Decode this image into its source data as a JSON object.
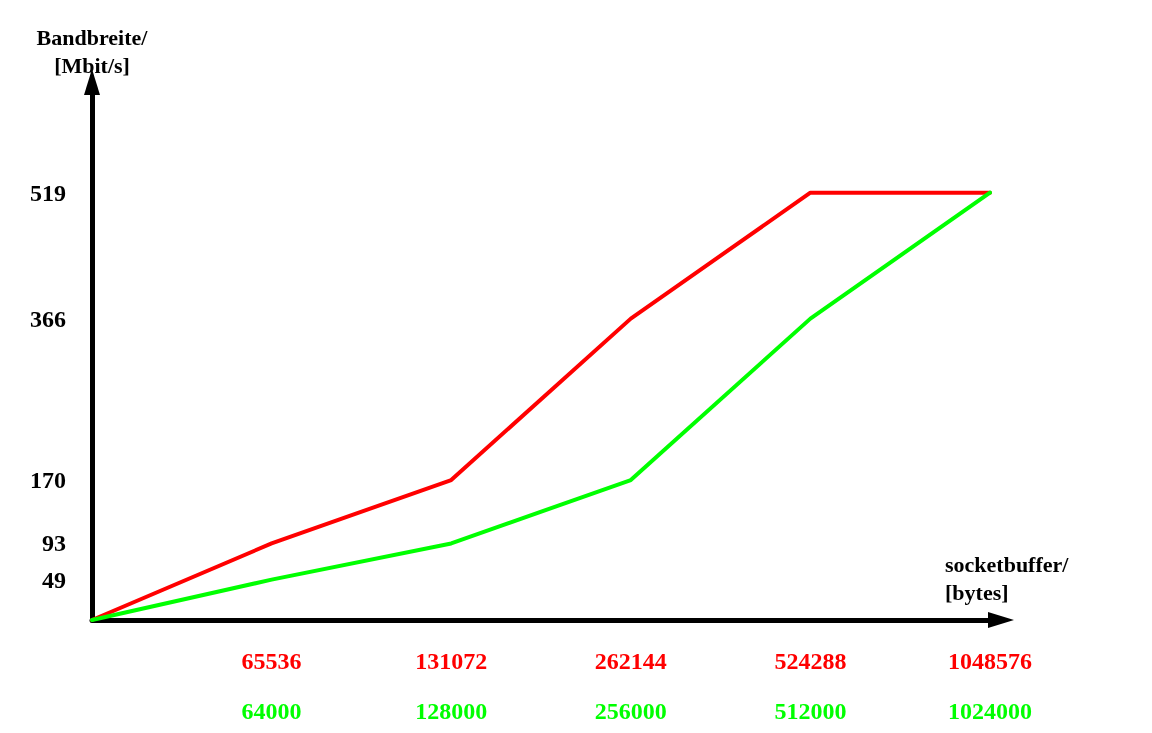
{
  "chart_data": {
    "type": "line",
    "ylabel": "Bandbreite/\n[Mbit/s]",
    "xlabel": "socketbuffer/\n[bytes]",
    "categories": [
      null,
      "65536\n64000",
      "131072\n128000",
      "262144\n256000",
      "524288\n512000",
      "1048576\n1024000"
    ],
    "series": [
      {
        "color": "#ff0000",
        "values": [
          0,
          93,
          170,
          366,
          519,
          519
        ]
      },
      {
        "color": "#00ff00",
        "values": [
          0,
          49,
          93,
          170,
          366,
          519
        ]
      }
    ],
    "ylim": [
      0,
      640
    ],
    "yticks": [
      49,
      93,
      170,
      366,
      519
    ],
    "marker": "none",
    "line_style": "solid"
  }
}
